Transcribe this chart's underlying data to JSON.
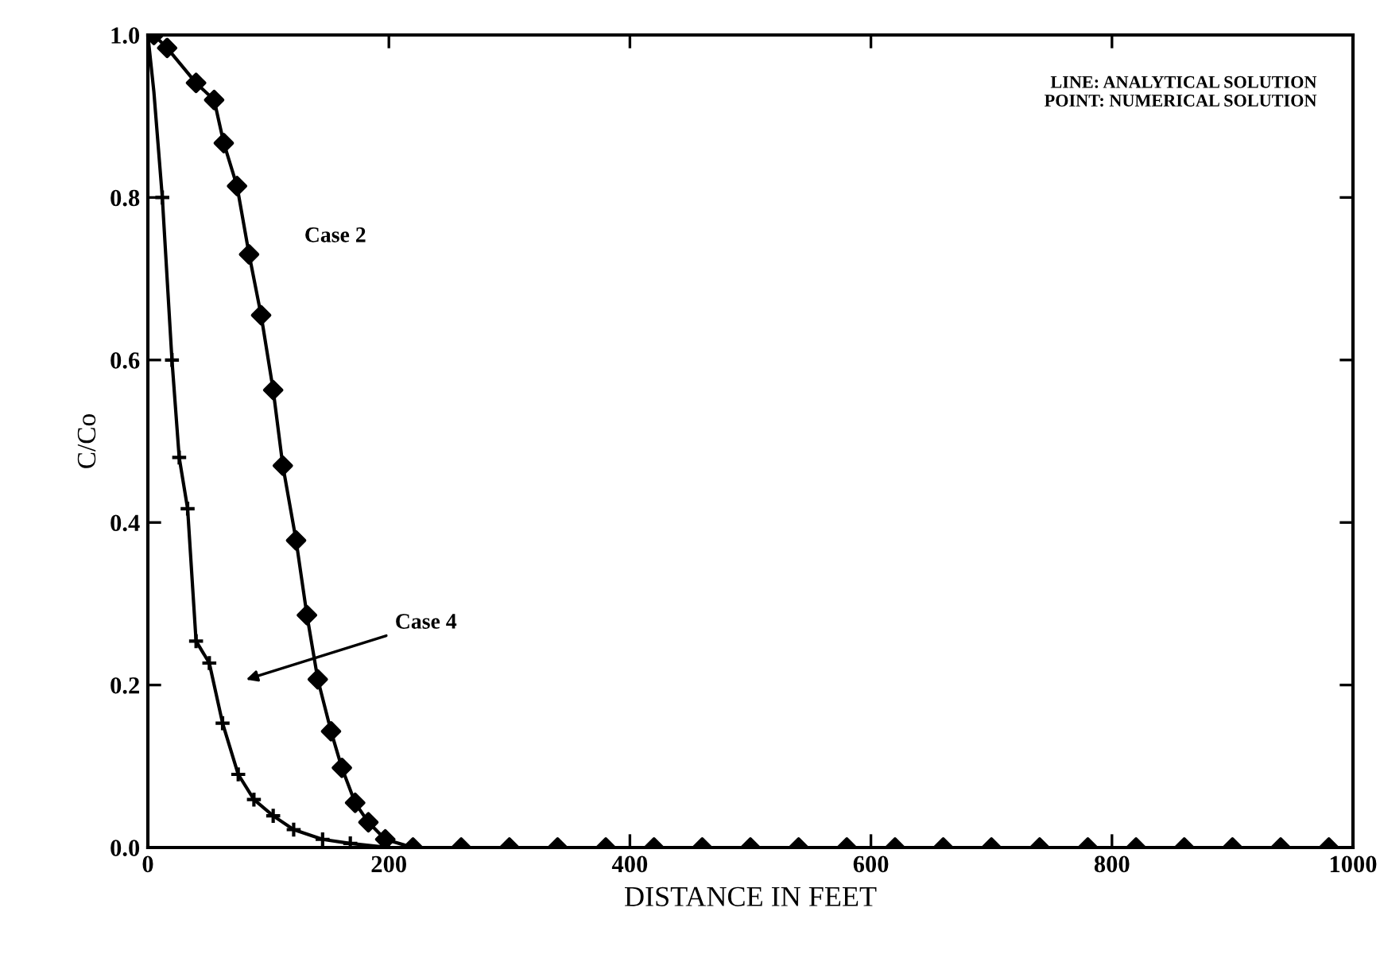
{
  "chart_data": {
    "type": "line",
    "xlabel": "DISTANCE IN FEET",
    "ylabel": "C/Co",
    "xlim": [
      0,
      1000
    ],
    "ylim": [
      0,
      1.0
    ],
    "xticks": [
      0,
      200,
      400,
      600,
      800,
      1000
    ],
    "yticks": [
      {
        "value": 0,
        "label": "0.0"
      },
      {
        "value": 0.2,
        "label": "0.2"
      },
      {
        "value": 0.4,
        "label": "0.4"
      },
      {
        "value": 0.6,
        "label": "0.6"
      },
      {
        "value": 0.8,
        "label": "0.8"
      },
      {
        "value": 1.0,
        "label": "1.0"
      }
    ],
    "grid": false,
    "series": [
      {
        "name": "Case 2",
        "color": "#000000",
        "marker": "none",
        "x": [
          5,
          16,
          40,
          55,
          63,
          74,
          84,
          94,
          104,
          112,
          123,
          132,
          141,
          152,
          161,
          172,
          183,
          197,
          220,
          300,
          1000
        ],
        "values": [
          1.0,
          0.984,
          0.941,
          0.92,
          0.867,
          0.814,
          0.73,
          0.655,
          0.563,
          0.47,
          0.378,
          0.286,
          0.207,
          0.143,
          0.098,
          0.055,
          0.031,
          0.01,
          0.0,
          0.0,
          0.0
        ]
      },
      {
        "type": "scatter",
        "color": "#000000",
        "marker": "diamond",
        "x": [
          5,
          16,
          40,
          55,
          63,
          74,
          84,
          94,
          104,
          112,
          123,
          132,
          141,
          152,
          161,
          172,
          183,
          197,
          220,
          260,
          300,
          340,
          380,
          420,
          460,
          500,
          540,
          580,
          620,
          660,
          700,
          740,
          780,
          820,
          860,
          900,
          940,
          980
        ],
        "values": [
          1.0,
          0.984,
          0.941,
          0.92,
          0.867,
          0.814,
          0.73,
          0.655,
          0.563,
          0.47,
          0.378,
          0.286,
          0.207,
          0.143,
          0.098,
          0.055,
          0.031,
          0.01,
          0.0,
          0.0,
          0.0,
          0.0,
          0.0,
          0.0,
          0.0,
          0.0,
          0.0,
          0.0,
          0.0,
          0.0,
          0.0,
          0.0,
          0.0,
          0.0,
          0.0,
          0.0,
          0.0,
          0.0
        ]
      },
      {
        "type": "line",
        "color": "#000000",
        "marker": "none",
        "x": [
          0,
          5,
          12,
          20,
          26,
          33,
          40,
          51,
          62,
          75,
          88,
          104,
          121,
          145,
          168,
          200,
          300
        ],
        "values": [
          1.0,
          0.93,
          0.8,
          0.6,
          0.48,
          0.417,
          0.254,
          0.227,
          0.153,
          0.09,
          0.059,
          0.039,
          0.022,
          0.01,
          0.005,
          0.0,
          0.0
        ]
      },
      {
        "type": "scatter",
        "color": "#000000",
        "marker": "cross",
        "x": [
          12,
          20,
          26,
          33,
          40,
          51,
          62,
          75,
          88,
          104,
          121,
          145,
          168
        ],
        "values": [
          0.8,
          0.6,
          0.48,
          0.417,
          0.254,
          0.227,
          0.153,
          0.09,
          0.059,
          0.039,
          0.022,
          0.01,
          0.005
        ]
      }
    ],
    "annotations": [
      "Case 4",
      "LINE: ANALYTICAL SOLUTION\nPOINT: NUMERICAL SOLUTION"
    ]
  }
}
